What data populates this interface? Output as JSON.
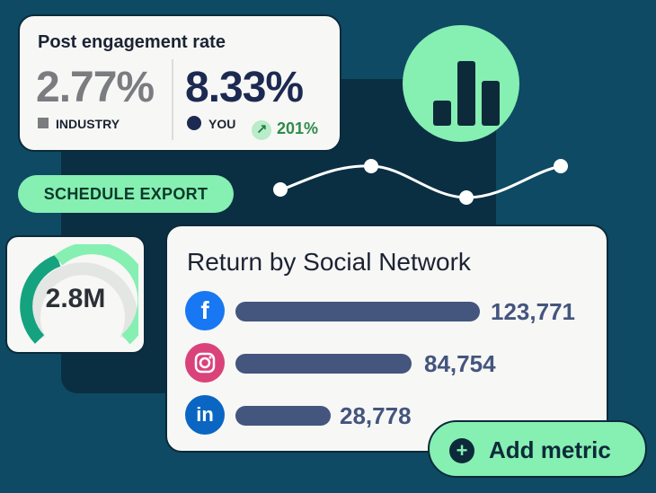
{
  "engagement": {
    "title": "Post engagement rate",
    "industry_value": "2.77%",
    "industry_label": "INDUSTRY",
    "you_value": "8.33%",
    "you_label": "YOU",
    "change": "201%"
  },
  "schedule_export_label": "SCHEDULE EXPORT",
  "gauge": {
    "value": "2.8M",
    "fill_fraction": 0.75
  },
  "return_card": {
    "title": "Return by Social Network",
    "rows": [
      {
        "network": "facebook",
        "icon": "facebook-icon",
        "value": "123,771",
        "amount": 123771
      },
      {
        "network": "instagram",
        "icon": "instagram-icon",
        "value": "84,754",
        "amount": 84754
      },
      {
        "network": "linkedin",
        "icon": "linkedin-icon",
        "value": "28,778",
        "amount": 28778
      }
    ]
  },
  "add_metric_label": "Add metric",
  "colors": {
    "background": "#0e4a63",
    "accent_green": "#86efb2",
    "bar_blue": "#44557e",
    "facebook": "#1877f2",
    "instagram": "#d9437a",
    "linkedin": "#0a66c2"
  }
}
